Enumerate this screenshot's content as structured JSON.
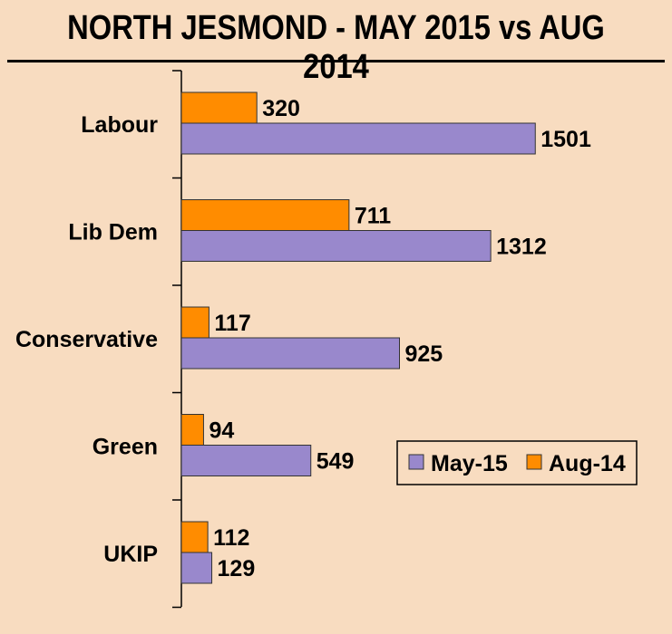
{
  "chart_data": {
    "type": "bar",
    "orientation": "horizontal",
    "title": "NORTH JESMOND - MAY 2015 vs AUG 2014",
    "categories": [
      "Labour",
      "Lib Dem",
      "Conservative",
      "Green",
      "UKIP"
    ],
    "series": [
      {
        "name": "Aug-14",
        "color": "#ff8c00",
        "values": [
          320,
          711,
          117,
          94,
          112
        ]
      },
      {
        "name": "May-15",
        "color": "#9988cc",
        "values": [
          1501,
          1312,
          925,
          549,
          129
        ]
      }
    ],
    "legend": {
      "placement": "right",
      "order": [
        "May-15",
        "Aug-14"
      ]
    },
    "xlim": [
      0,
      1800
    ],
    "grid": false
  }
}
